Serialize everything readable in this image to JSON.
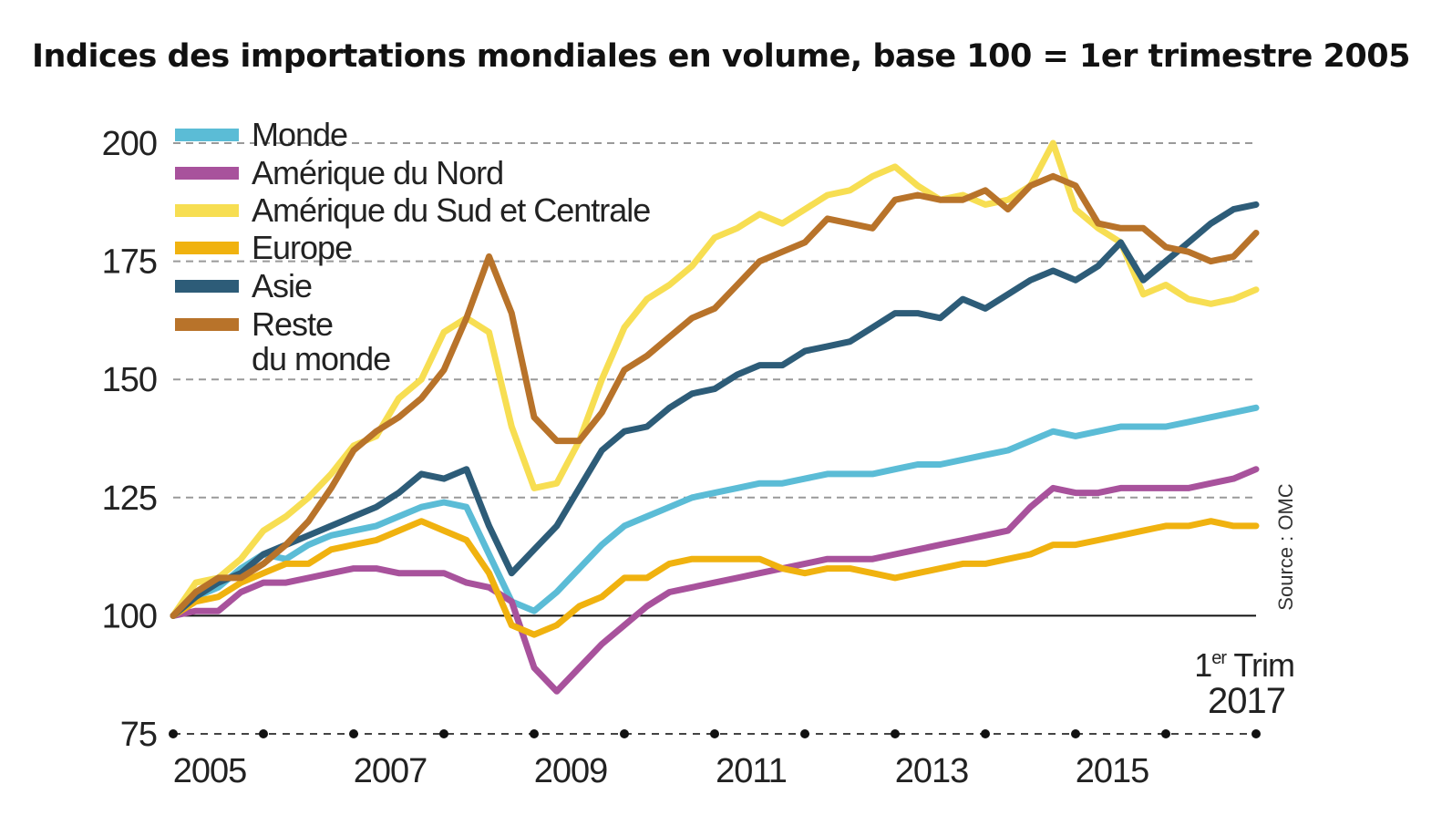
{
  "title": "Indices des importations mondiales en volume, base 100 = 1er trimestre 2005",
  "source": "Source : OMC",
  "annotation": {
    "line1_sup": "er",
    "line1_pre": "1",
    "line1_post": " Trim",
    "line2": "2017"
  },
  "chart_data": {
    "type": "line",
    "title": "Indices des importations mondiales en volume, base 100 = 1er trimestre 2005",
    "ylim": [
      75,
      200
    ],
    "yticks": [
      75,
      100,
      125,
      150,
      175,
      200
    ],
    "xlim": [
      2005.0,
      2017.0
    ],
    "xticks": [
      2005,
      2007,
      2009,
      2011,
      2013,
      2015
    ],
    "xtick_labels": [
      "2005",
      "2007",
      "2009",
      "2011",
      "2013",
      "2015"
    ],
    "grid": "horizontal dashed",
    "legend_position": "top-left",
    "x": [
      2005.0,
      2005.25,
      2005.5,
      2005.75,
      2006.0,
      2006.25,
      2006.5,
      2006.75,
      2007.0,
      2007.25,
      2007.5,
      2007.75,
      2008.0,
      2008.25,
      2008.5,
      2008.75,
      2009.0,
      2009.25,
      2009.5,
      2009.75,
      2010.0,
      2010.25,
      2010.5,
      2010.75,
      2011.0,
      2011.25,
      2011.5,
      2011.75,
      2012.0,
      2012.25,
      2012.5,
      2012.75,
      2013.0,
      2013.25,
      2013.5,
      2013.75,
      2014.0,
      2014.25,
      2014.5,
      2014.75,
      2015.0,
      2015.25,
      2015.5,
      2015.75,
      2016.0,
      2016.25,
      2016.5,
      2016.75,
      2017.0
    ],
    "series": [
      {
        "name": "Monde",
        "color": "#5bbcd6",
        "values": [
          100,
          104,
          106,
          110,
          113,
          112,
          115,
          117,
          118,
          119,
          121,
          123,
          124,
          123,
          113,
          103,
          101,
          105,
          110,
          115,
          119,
          121,
          123,
          125,
          126,
          127,
          128,
          128,
          129,
          130,
          130,
          130,
          131,
          132,
          132,
          133,
          134,
          135,
          137,
          139,
          138,
          139,
          140,
          140,
          140,
          141,
          142,
          143,
          144
        ]
      },
      {
        "name": "Amérique du Nord",
        "color": "#a8529c",
        "values": [
          100,
          101,
          101,
          105,
          107,
          107,
          108,
          109,
          110,
          110,
          109,
          109,
          109,
          107,
          106,
          103,
          89,
          84,
          89,
          94,
          98,
          102,
          105,
          106,
          107,
          108,
          109,
          110,
          111,
          112,
          112,
          112,
          113,
          114,
          115,
          116,
          117,
          118,
          123,
          127,
          126,
          126,
          127,
          127,
          127,
          127,
          128,
          129,
          131
        ]
      },
      {
        "name": "Amérique du Sud et Centrale",
        "color": "#f7de52",
        "values": [
          100,
          107,
          108,
          112,
          118,
          121,
          125,
          130,
          136,
          138,
          146,
          150,
          160,
          163,
          160,
          140,
          127,
          128,
          137,
          150,
          161,
          167,
          170,
          174,
          180,
          182,
          185,
          183,
          186,
          189,
          190,
          193,
          195,
          191,
          188,
          189,
          187,
          188,
          191,
          200,
          186,
          182,
          179,
          168,
          170,
          167,
          166,
          167,
          169
        ]
      },
      {
        "name": "Europe",
        "color": "#f0b20f",
        "values": [
          100,
          103,
          104,
          107,
          109,
          111,
          111,
          114,
          115,
          116,
          118,
          120,
          118,
          116,
          109,
          98,
          96,
          98,
          102,
          104,
          108,
          108,
          111,
          112,
          112,
          112,
          112,
          110,
          109,
          110,
          110,
          109,
          108,
          109,
          110,
          111,
          111,
          112,
          113,
          115,
          115,
          116,
          117,
          118,
          119,
          119,
          120,
          119,
          119
        ]
      },
      {
        "name": "Asie",
        "color": "#2d5c78",
        "values": [
          100,
          104,
          107,
          109,
          113,
          115,
          117,
          119,
          121,
          123,
          126,
          130,
          129,
          131,
          119,
          109,
          114,
          119,
          127,
          135,
          139,
          140,
          144,
          147,
          148,
          151,
          153,
          153,
          156,
          157,
          158,
          161,
          164,
          164,
          163,
          167,
          165,
          168,
          171,
          173,
          171,
          174,
          179,
          171,
          175,
          179,
          183,
          186,
          187
        ]
      },
      {
        "name": "Reste du monde",
        "color": "#b8732a",
        "values": [
          100,
          105,
          108,
          108,
          111,
          115,
          120,
          127,
          135,
          139,
          142,
          146,
          152,
          163,
          176,
          164,
          142,
          137,
          137,
          143,
          152,
          155,
          159,
          163,
          165,
          170,
          175,
          177,
          179,
          184,
          183,
          182,
          188,
          189,
          188,
          188,
          190,
          186,
          191,
          193,
          191,
          183,
          182,
          182,
          178,
          177,
          175,
          176,
          181
        ]
      }
    ],
    "legend": [
      {
        "label": "Monde",
        "color": "#5bbcd6"
      },
      {
        "label": "Amérique du Nord",
        "color": "#a8529c"
      },
      {
        "label": "Amérique du Sud et Centrale",
        "color": "#f7de52"
      },
      {
        "label": "Europe",
        "color": "#f0b20f"
      },
      {
        "label": "Asie",
        "color": "#2d5c78"
      },
      {
        "label": "Reste",
        "label_line2": "du monde",
        "color": "#b8732a"
      }
    ]
  }
}
